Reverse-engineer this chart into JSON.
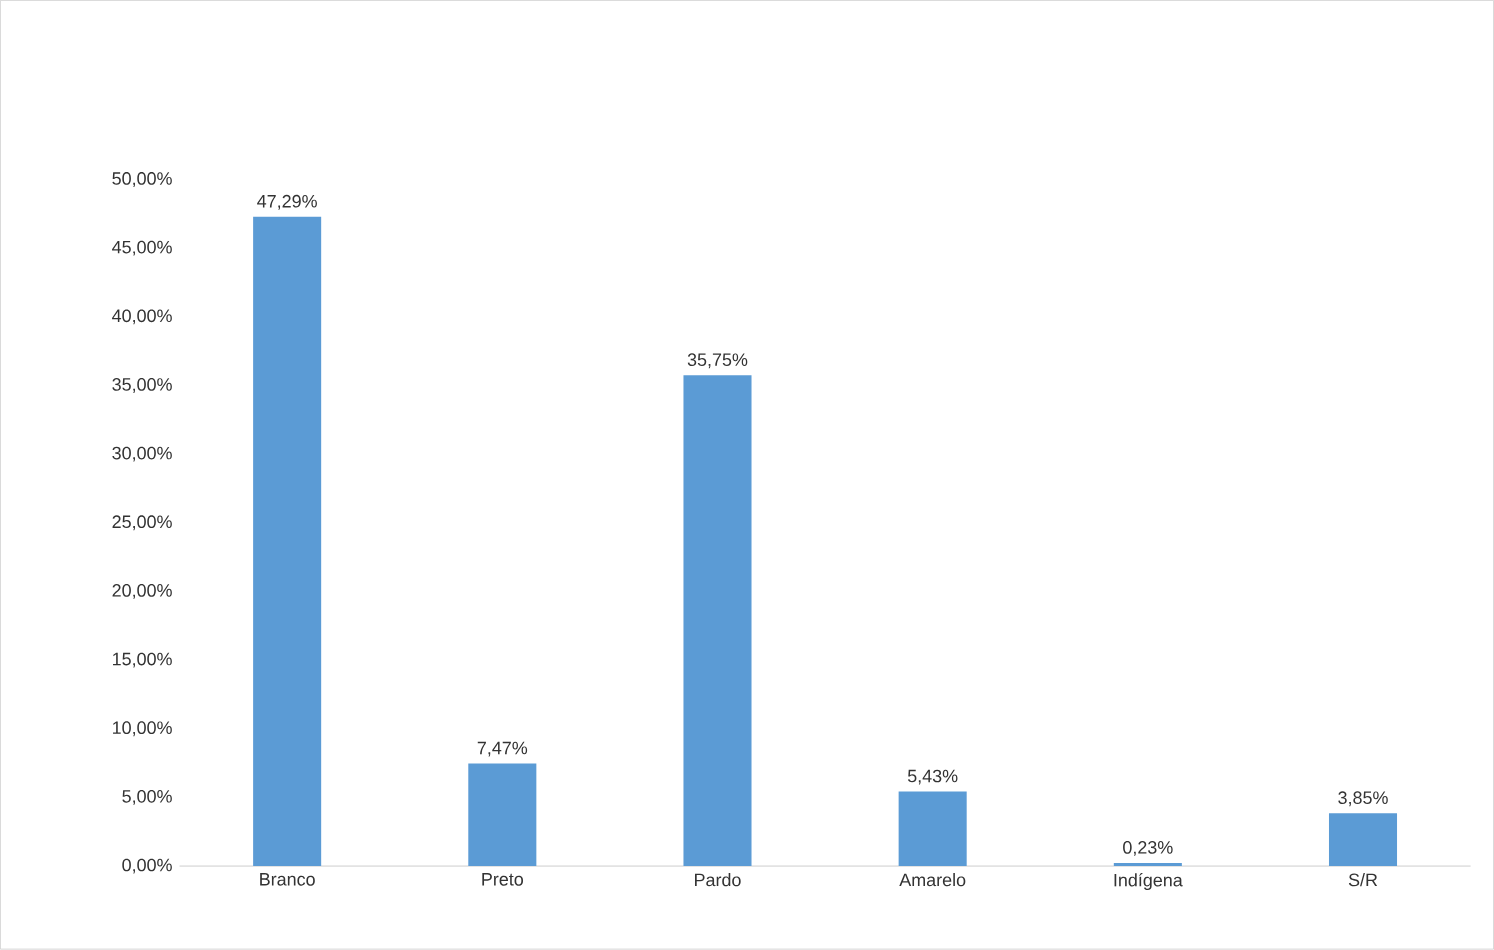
{
  "chart_data": {
    "type": "bar",
    "categories": [
      "Branco",
      "Preto",
      "Pardo",
      "Amarelo",
      "Indígena",
      "S/R"
    ],
    "values": [
      47.29,
      7.47,
      35.75,
      5.43,
      0.23,
      3.85
    ],
    "value_labels": [
      "47,29%",
      "7,47%",
      "35,75%",
      "5,43%",
      "0,23%",
      "3,85%"
    ],
    "color": "#5b9bd5",
    "ylim": [
      0,
      50
    ],
    "yticks": [
      {
        "value": 0,
        "label": "0,00%"
      },
      {
        "value": 5,
        "label": "5,00%"
      },
      {
        "value": 10,
        "label": "10,00%"
      },
      {
        "value": 15,
        "label": "15,00%"
      },
      {
        "value": 20,
        "label": "20,00%"
      },
      {
        "value": 25,
        "label": "25,00%"
      },
      {
        "value": 30,
        "label": "30,00%"
      },
      {
        "value": 35,
        "label": "35,00%"
      },
      {
        "value": 40,
        "label": "40,00%"
      },
      {
        "value": 45,
        "label": "45,00%"
      },
      {
        "value": 50,
        "label": "50,00%"
      }
    ],
    "grid": false
  }
}
